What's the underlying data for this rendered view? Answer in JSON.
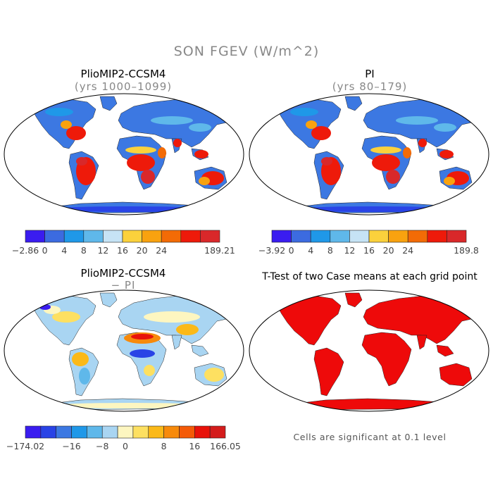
{
  "title": "SON FGEV (W/m^2)",
  "panels": [
    {
      "title": "PlioMIP2-CCSM4",
      "subtitle": "(yrs 1000–1099)"
    },
    {
      "title": "PI",
      "subtitle": "(yrs 80–179)"
    },
    {
      "title": "PlioMIP2-CCSM4",
      "subtitle": "− PI"
    },
    {
      "title": "T-Test of two Case means at each grid point",
      "subtitle": ""
    }
  ],
  "colorbars": [
    {
      "colors": [
        "#3a1cf0",
        "#3c6be0",
        "#1f98e8",
        "#5fb8ea",
        "#c6e3f5",
        "#fbd13c",
        "#f9a20f",
        "#f36b06",
        "#ee1a0a",
        "#d9282a"
      ],
      "labels": [
        "−2.86",
        "0",
        "4",
        "8",
        "12",
        "16",
        "20",
        "24",
        "189.21"
      ]
    },
    {
      "colors": [
        "#3a1cf0",
        "#3c6be0",
        "#1f98e8",
        "#5fb8ea",
        "#c6e3f5",
        "#fbd13c",
        "#f9a20f",
        "#f36b06",
        "#ee1a0a",
        "#d9282a"
      ],
      "labels": [
        "−3.92",
        "0",
        "4",
        "8",
        "12",
        "16",
        "20",
        "24",
        "189.8"
      ]
    },
    {
      "colors": [
        "#3a1cf0",
        "#2943e6",
        "#3c78e2",
        "#1f98e8",
        "#5fb8ea",
        "#a9d5f2",
        "#fdf6c0",
        "#fde061",
        "#fbb918",
        "#f78a0b",
        "#f45a07",
        "#e8120a",
        "#d41c1c"
      ],
      "labels": [
        "−174.02",
        "−16",
        "−8",
        "0",
        "8",
        "16",
        "166.05"
      ]
    }
  ],
  "note": "Cells are significant at 0.1 level"
}
